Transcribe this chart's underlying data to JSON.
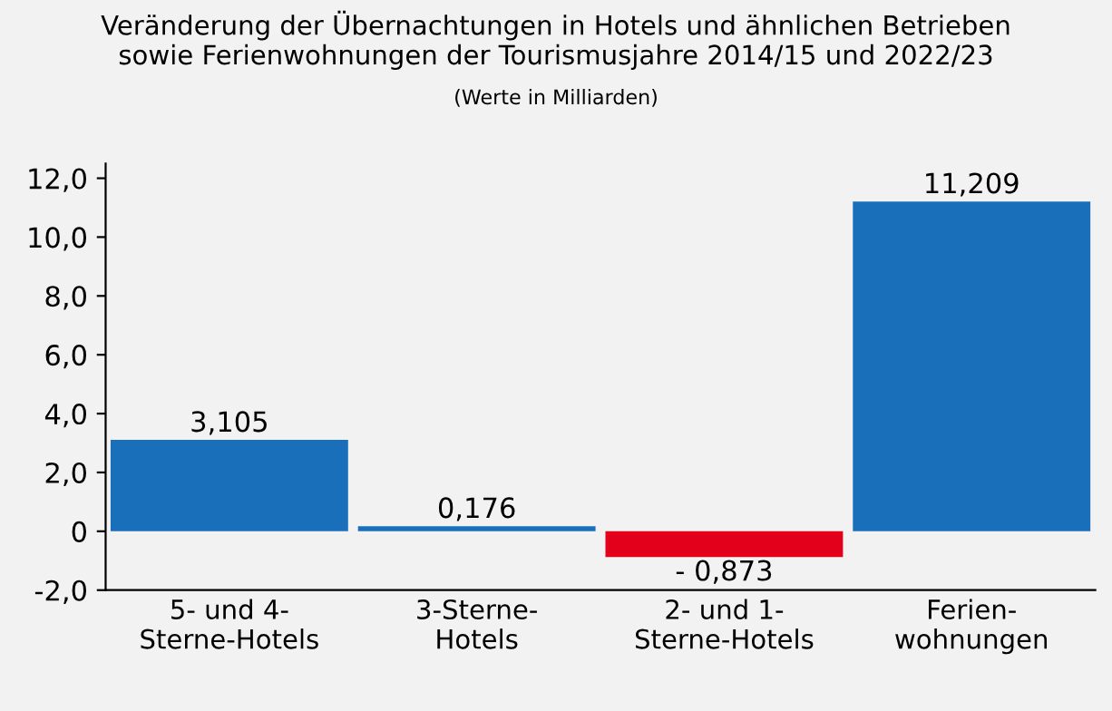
{
  "chart_data": {
    "type": "bar",
    "title": "Veränderung der Übernachtungen in Hotels und ähnlichen Betrieben\nsowie Ferienwohnungen der Tourismusjahre 2014/15 und 2022/23",
    "subtitle": "(Werte in Milliarden)",
    "categories": [
      "5- und 4-\nSterne-Hotels",
      "3-Sterne-\nHotels",
      "2- und 1-\nSterne-Hotels",
      "Ferien-\nwohnungen"
    ],
    "values": [
      3.105,
      0.176,
      -0.873,
      11.209
    ],
    "colors": [
      "#1a6fba",
      "#1a6fba",
      "#e3001b",
      "#1a6fba"
    ],
    "value_labels": [
      "3,105",
      "0,176",
      "- 0,873",
      "11,209"
    ],
    "ylim": [
      -2.0,
      12.5
    ],
    "yticks": [
      {
        "value": -2,
        "label": "-2,0"
      },
      {
        "value": 0,
        "label": "0"
      },
      {
        "value": 2,
        "label": "2,0"
      },
      {
        "value": 4,
        "label": "4,0"
      },
      {
        "value": 6,
        "label": "6,0"
      },
      {
        "value": 8,
        "label": "8,0"
      },
      {
        "value": 10,
        "label": "10,0"
      },
      {
        "value": 12,
        "label": "12,0"
      }
    ],
    "grid": false
  }
}
